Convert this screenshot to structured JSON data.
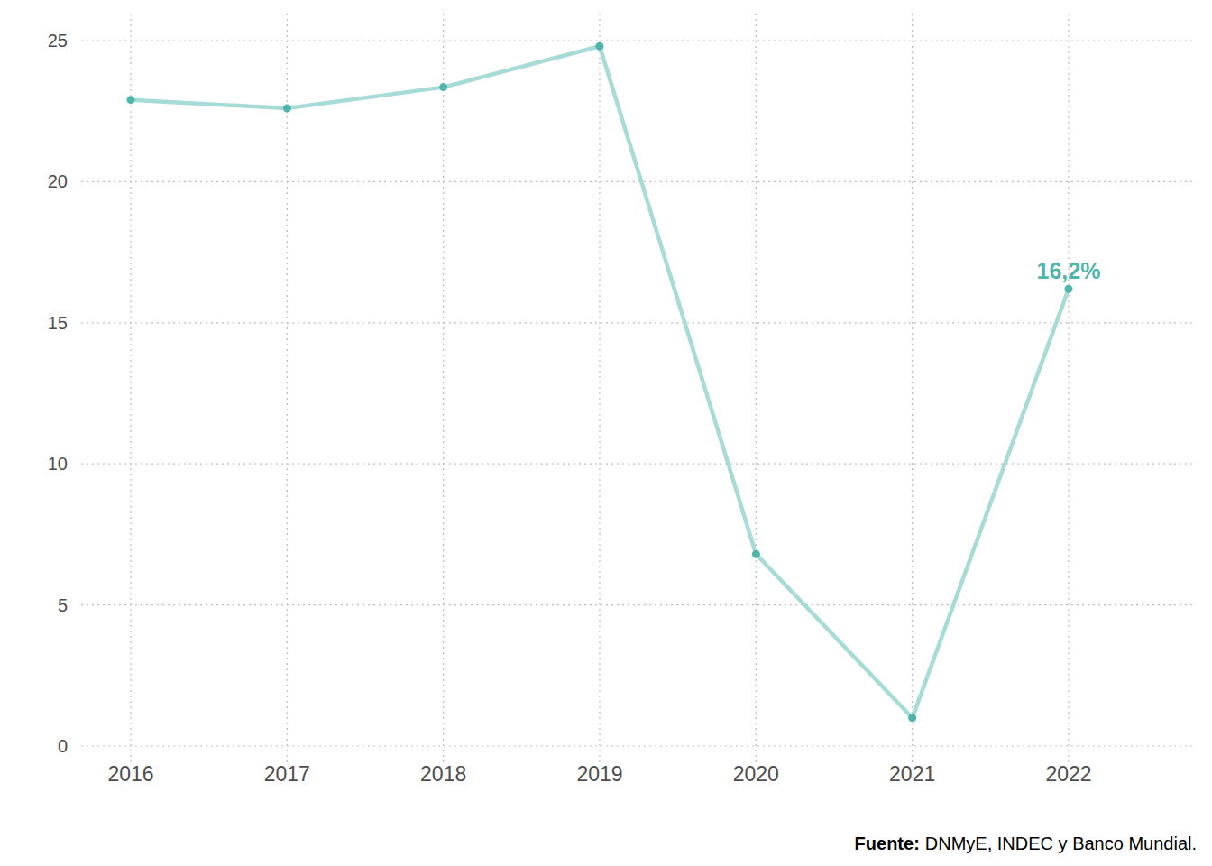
{
  "chart_data": {
    "type": "line",
    "categories": [
      "2016",
      "2017",
      "2018",
      "2019",
      "2020",
      "2021",
      "2022"
    ],
    "values": [
      22.9,
      22.6,
      23.35,
      24.8,
      6.8,
      1.0,
      16.2
    ],
    "value_labels": [
      null,
      null,
      null,
      null,
      null,
      null,
      "16,2%"
    ],
    "color": "#a6dbd6",
    "marker": "circle",
    "ylim": [
      0,
      25
    ],
    "yticks": [
      0,
      5,
      10,
      15,
      20,
      25
    ],
    "grid": true,
    "source": {
      "label": "Fuente:",
      "text": "DNMyE, INDEC y Banco Mundial."
    }
  }
}
